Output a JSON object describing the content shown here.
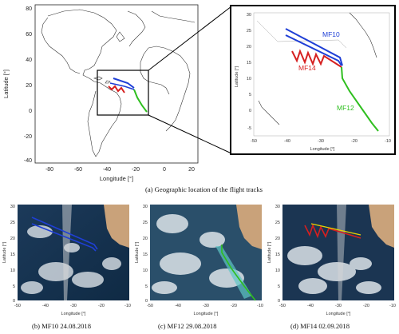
{
  "figure": {
    "caption_a": "(a) Geographic location of the flight tracks",
    "caption_b": "(b) MF10 24.08.2018",
    "caption_c": "(c) MF12 29.08.2018",
    "caption_d": "(d) MF14 02.09.2018"
  },
  "main_map": {
    "xlabel": "Longitude [°]",
    "ylabel": "Latitude [°]",
    "xticks": [
      "-80",
      "-60",
      "-40",
      "-20",
      "0",
      "20"
    ],
    "yticks": [
      "80",
      "60",
      "40",
      "20",
      "0",
      "-20",
      "-40"
    ]
  },
  "inset_map": {
    "xlabel": "Longitude [°]",
    "ylabel": "Latitude [°]",
    "xticks": [
      "-50",
      "-40",
      "-30",
      "-20",
      "-10"
    ],
    "yticks": [
      "30",
      "25",
      "20",
      "15",
      "10",
      "5",
      "0",
      "-5"
    ],
    "labels": {
      "mf10": "MF10",
      "mf14": "MF14",
      "mf12": "MF12"
    }
  },
  "sat_panels": {
    "xlabel": "Longitude [°]",
    "ylabel": "Latitude [°]",
    "xticks": [
      "-50",
      "-40",
      "-30",
      "-20",
      "-10"
    ],
    "yticks": [
      "30",
      "25",
      "20",
      "15",
      "10",
      "5",
      "0"
    ]
  },
  "colors": {
    "mf10": "#1f3fd6",
    "mf12": "#2fbf1f",
    "mf14": "#d61f1f",
    "coast": "#333333"
  }
}
